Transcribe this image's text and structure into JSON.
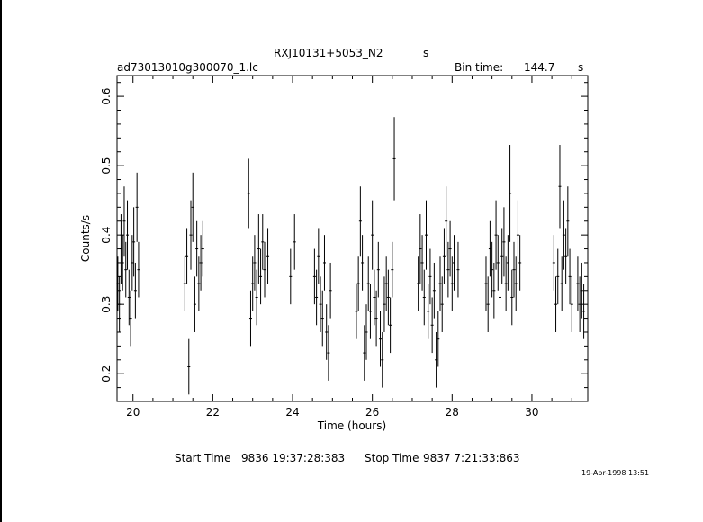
{
  "header": {
    "title": "RXJ10131+5053_N2",
    "title_suffix": "s",
    "filename": "ad73013010g300070_1.lc",
    "bin_label": "Bin time:",
    "bin_value": "144.7",
    "bin_unit": "s"
  },
  "footer": {
    "start_label": "Start Time",
    "start_value": "9836  19:37:28:383",
    "stop_label": "Stop Time",
    "stop_value": "9837   7:21:33:863",
    "date_stamp": "19-Apr-1998 13:51"
  },
  "chart_data": {
    "type": "scatter",
    "xlabel": "Time (hours)",
    "ylabel": "Counts/s",
    "xlim": [
      19.6,
      31.4
    ],
    "ylim": [
      0.16,
      0.63
    ],
    "xticks": [
      20,
      22,
      24,
      26,
      28,
      30
    ],
    "yticks": [
      0.2,
      0.3,
      0.4,
      0.5,
      0.6
    ],
    "error_bars": true,
    "series": [
      {
        "points": [
          {
            "x": 19.62,
            "y": 0.33,
            "e": 0.04
          },
          {
            "x": 19.66,
            "y": 0.3,
            "e": 0.04
          },
          {
            "x": 19.7,
            "y": 0.38,
            "e": 0.05
          },
          {
            "x": 19.74,
            "y": 0.36,
            "e": 0.04
          },
          {
            "x": 19.78,
            "y": 0.42,
            "e": 0.05
          },
          {
            "x": 19.82,
            "y": 0.35,
            "e": 0.04
          },
          {
            "x": 19.86,
            "y": 0.4,
            "e": 0.05
          },
          {
            "x": 19.9,
            "y": 0.31,
            "e": 0.04
          },
          {
            "x": 19.94,
            "y": 0.28,
            "e": 0.04
          },
          {
            "x": 19.98,
            "y": 0.36,
            "e": 0.04
          },
          {
            "x": 20.02,
            "y": 0.39,
            "e": 0.05
          },
          {
            "x": 20.06,
            "y": 0.32,
            "e": 0.04
          },
          {
            "x": 20.1,
            "y": 0.44,
            "e": 0.05
          },
          {
            "x": 20.14,
            "y": 0.35,
            "e": 0.04
          },
          {
            "x": 21.3,
            "y": 0.33,
            "e": 0.04
          },
          {
            "x": 21.35,
            "y": 0.37,
            "e": 0.04
          },
          {
            "x": 21.4,
            "y": 0.21,
            "e": 0.04
          },
          {
            "x": 21.45,
            "y": 0.4,
            "e": 0.05
          },
          {
            "x": 21.5,
            "y": 0.44,
            "e": 0.05
          },
          {
            "x": 21.55,
            "y": 0.3,
            "e": 0.04
          },
          {
            "x": 21.6,
            "y": 0.38,
            "e": 0.04
          },
          {
            "x": 21.65,
            "y": 0.33,
            "e": 0.04
          },
          {
            "x": 21.7,
            "y": 0.36,
            "e": 0.04
          },
          {
            "x": 21.75,
            "y": 0.38,
            "e": 0.04
          },
          {
            "x": 22.9,
            "y": 0.46,
            "e": 0.05
          },
          {
            "x": 22.95,
            "y": 0.28,
            "e": 0.04
          },
          {
            "x": 23.0,
            "y": 0.33,
            "e": 0.04
          },
          {
            "x": 23.05,
            "y": 0.36,
            "e": 0.04
          },
          {
            "x": 23.1,
            "y": 0.31,
            "e": 0.04
          },
          {
            "x": 23.15,
            "y": 0.38,
            "e": 0.05
          },
          {
            "x": 23.2,
            "y": 0.34,
            "e": 0.04
          },
          {
            "x": 23.25,
            "y": 0.39,
            "e": 0.04
          },
          {
            "x": 23.3,
            "y": 0.35,
            "e": 0.04
          },
          {
            "x": 23.38,
            "y": 0.37,
            "e": 0.04
          },
          {
            "x": 23.95,
            "y": 0.34,
            "e": 0.04
          },
          {
            "x": 24.05,
            "y": 0.39,
            "e": 0.04
          },
          {
            "x": 24.55,
            "y": 0.34,
            "e": 0.04
          },
          {
            "x": 24.6,
            "y": 0.31,
            "e": 0.04
          },
          {
            "x": 24.65,
            "y": 0.37,
            "e": 0.04
          },
          {
            "x": 24.7,
            "y": 0.3,
            "e": 0.04
          },
          {
            "x": 24.75,
            "y": 0.28,
            "e": 0.04
          },
          {
            "x": 24.8,
            "y": 0.36,
            "e": 0.04
          },
          {
            "x": 24.85,
            "y": 0.26,
            "e": 0.04
          },
          {
            "x": 24.9,
            "y": 0.23,
            "e": 0.04
          },
          {
            "x": 24.95,
            "y": 0.32,
            "e": 0.04
          },
          {
            "x": 25.6,
            "y": 0.29,
            "e": 0.04
          },
          {
            "x": 25.65,
            "y": 0.33,
            "e": 0.04
          },
          {
            "x": 25.7,
            "y": 0.42,
            "e": 0.05
          },
          {
            "x": 25.75,
            "y": 0.36,
            "e": 0.04
          },
          {
            "x": 25.8,
            "y": 0.23,
            "e": 0.04
          },
          {
            "x": 25.85,
            "y": 0.26,
            "e": 0.04
          },
          {
            "x": 25.9,
            "y": 0.33,
            "e": 0.04
          },
          {
            "x": 25.95,
            "y": 0.29,
            "e": 0.04
          },
          {
            "x": 26.0,
            "y": 0.4,
            "e": 0.05
          },
          {
            "x": 26.05,
            "y": 0.31,
            "e": 0.04
          },
          {
            "x": 26.1,
            "y": 0.28,
            "e": 0.04
          },
          {
            "x": 26.15,
            "y": 0.35,
            "e": 0.04
          },
          {
            "x": 26.2,
            "y": 0.25,
            "e": 0.04
          },
          {
            "x": 26.25,
            "y": 0.22,
            "e": 0.04
          },
          {
            "x": 26.3,
            "y": 0.3,
            "e": 0.04
          },
          {
            "x": 26.35,
            "y": 0.33,
            "e": 0.04
          },
          {
            "x": 26.4,
            "y": 0.31,
            "e": 0.04
          },
          {
            "x": 26.45,
            "y": 0.27,
            "e": 0.04
          },
          {
            "x": 26.5,
            "y": 0.35,
            "e": 0.04
          },
          {
            "x": 26.55,
            "y": 0.51,
            "e": 0.06
          },
          {
            "x": 27.15,
            "y": 0.33,
            "e": 0.04
          },
          {
            "x": 27.2,
            "y": 0.38,
            "e": 0.05
          },
          {
            "x": 27.25,
            "y": 0.36,
            "e": 0.04
          },
          {
            "x": 27.3,
            "y": 0.31,
            "e": 0.04
          },
          {
            "x": 27.35,
            "y": 0.4,
            "e": 0.05
          },
          {
            "x": 27.4,
            "y": 0.29,
            "e": 0.04
          },
          {
            "x": 27.45,
            "y": 0.34,
            "e": 0.04
          },
          {
            "x": 27.5,
            "y": 0.27,
            "e": 0.04
          },
          {
            "x": 27.55,
            "y": 0.32,
            "e": 0.04
          },
          {
            "x": 27.6,
            "y": 0.22,
            "e": 0.04
          },
          {
            "x": 27.65,
            "y": 0.25,
            "e": 0.04
          },
          {
            "x": 27.7,
            "y": 0.33,
            "e": 0.04
          },
          {
            "x": 27.75,
            "y": 0.3,
            "e": 0.04
          },
          {
            "x": 27.8,
            "y": 0.37,
            "e": 0.04
          },
          {
            "x": 27.85,
            "y": 0.42,
            "e": 0.05
          },
          {
            "x": 27.9,
            "y": 0.35,
            "e": 0.04
          },
          {
            "x": 27.95,
            "y": 0.38,
            "e": 0.04
          },
          {
            "x": 28.0,
            "y": 0.33,
            "e": 0.04
          },
          {
            "x": 28.05,
            "y": 0.36,
            "e": 0.04
          },
          {
            "x": 28.15,
            "y": 0.35,
            "e": 0.04
          },
          {
            "x": 28.85,
            "y": 0.33,
            "e": 0.04
          },
          {
            "x": 28.9,
            "y": 0.3,
            "e": 0.04
          },
          {
            "x": 28.95,
            "y": 0.38,
            "e": 0.04
          },
          {
            "x": 29.0,
            "y": 0.35,
            "e": 0.04
          },
          {
            "x": 29.05,
            "y": 0.32,
            "e": 0.04
          },
          {
            "x": 29.1,
            "y": 0.4,
            "e": 0.05
          },
          {
            "x": 29.15,
            "y": 0.36,
            "e": 0.04
          },
          {
            "x": 29.2,
            "y": 0.31,
            "e": 0.04
          },
          {
            "x": 29.25,
            "y": 0.37,
            "e": 0.04
          },
          {
            "x": 29.3,
            "y": 0.39,
            "e": 0.05
          },
          {
            "x": 29.35,
            "y": 0.33,
            "e": 0.04
          },
          {
            "x": 29.4,
            "y": 0.36,
            "e": 0.04
          },
          {
            "x": 29.45,
            "y": 0.46,
            "e": 0.07
          },
          {
            "x": 29.5,
            "y": 0.31,
            "e": 0.04
          },
          {
            "x": 29.55,
            "y": 0.35,
            "e": 0.04
          },
          {
            "x": 29.6,
            "y": 0.33,
            "e": 0.04
          },
          {
            "x": 29.65,
            "y": 0.4,
            "e": 0.05
          },
          {
            "x": 29.7,
            "y": 0.36,
            "e": 0.04
          },
          {
            "x": 30.55,
            "y": 0.36,
            "e": 0.04
          },
          {
            "x": 30.6,
            "y": 0.3,
            "e": 0.04
          },
          {
            "x": 30.65,
            "y": 0.34,
            "e": 0.04
          },
          {
            "x": 30.7,
            "y": 0.47,
            "e": 0.06
          },
          {
            "x": 30.75,
            "y": 0.33,
            "e": 0.04
          },
          {
            "x": 30.8,
            "y": 0.4,
            "e": 0.05
          },
          {
            "x": 30.85,
            "y": 0.37,
            "e": 0.04
          },
          {
            "x": 30.9,
            "y": 0.42,
            "e": 0.05
          },
          {
            "x": 30.95,
            "y": 0.34,
            "e": 0.04
          },
          {
            "x": 31.0,
            "y": 0.3,
            "e": 0.04
          },
          {
            "x": 31.15,
            "y": 0.33,
            "e": 0.04
          },
          {
            "x": 31.2,
            "y": 0.3,
            "e": 0.04
          },
          {
            "x": 31.25,
            "y": 0.32,
            "e": 0.04
          },
          {
            "x": 31.3,
            "y": 0.29,
            "e": 0.04
          }
        ]
      }
    ]
  }
}
